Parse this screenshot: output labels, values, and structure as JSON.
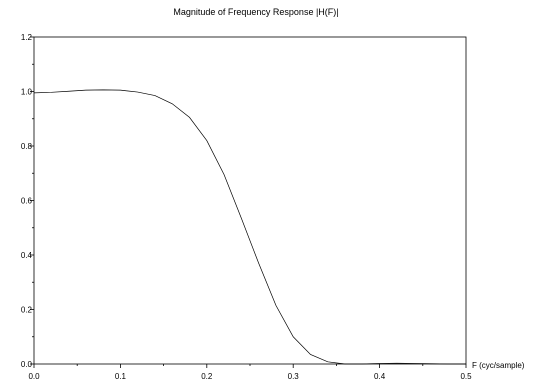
{
  "chart_data": {
    "type": "line",
    "title": "Magnitude of Frequency Response |H(F)|",
    "xlabel": "F (cyc/sample)",
    "ylabel": "",
    "xlim": [
      0.0,
      0.5
    ],
    "ylim": [
      0.0,
      1.2
    ],
    "x_ticks": [
      "0.0",
      "0.1",
      "0.2",
      "0.3",
      "0.4",
      "0.5"
    ],
    "y_ticks": [
      "0.0",
      "0.2",
      "0.4",
      "0.6",
      "0.8",
      "1.0",
      "1.2"
    ],
    "grid": false,
    "series": [
      {
        "x": [
          0.0,
          0.02,
          0.04,
          0.06,
          0.08,
          0.1,
          0.12,
          0.14,
          0.16,
          0.18,
          0.2,
          0.22,
          0.24,
          0.26,
          0.28,
          0.3,
          0.32,
          0.34,
          0.36,
          0.38,
          0.4,
          0.42,
          0.44,
          0.46,
          0.48,
          0.5
        ],
        "y": [
          0.995,
          0.997,
          1.001,
          1.005,
          1.006,
          1.005,
          0.998,
          0.985,
          0.955,
          0.905,
          0.82,
          0.695,
          0.535,
          0.37,
          0.215,
          0.1,
          0.035,
          0.008,
          0.0,
          0.0,
          0.002,
          0.003,
          0.002,
          0.001,
          0.0,
          0.0
        ]
      }
    ]
  }
}
